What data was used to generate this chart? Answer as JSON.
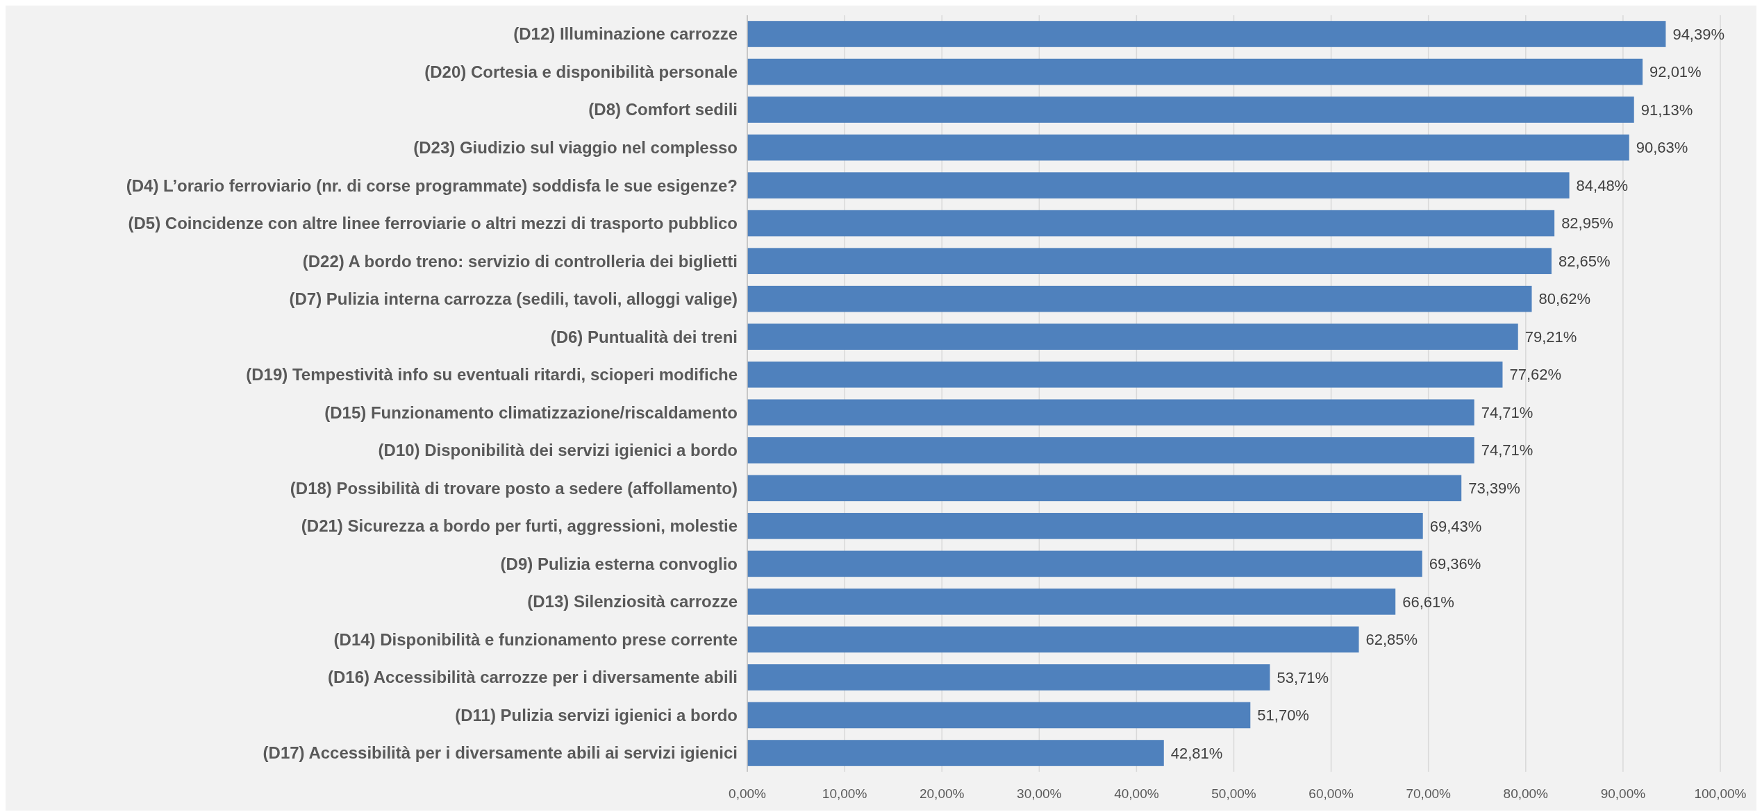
{
  "chart_data": {
    "type": "bar",
    "orientation": "horizontal",
    "categories": [
      "(D12) Illuminazione carrozze",
      "(D20) Cortesia e disponibilità personale",
      "(D8) Comfort sedili",
      "(D23) Giudizio sul viaggio nel complesso",
      "(D4) L’orario ferroviario (nr. di corse programmate) soddisfa le sue esigenze?",
      "(D5) Coincidenze con altre linee ferroviarie o altri mezzi di trasporto pubblico",
      "(D22) A bordo treno: servizio di controlleria dei biglietti",
      "(D7) Pulizia interna carrozza (sedili, tavoli, alloggi valige)",
      "(D6) Puntualità dei treni",
      "(D19) Tempestività info su eventuali ritardi, scioperi modifiche",
      "(D15) Funzionamento climatizzazione/riscaldamento",
      "(D10) Disponibilità dei servizi igienici a bordo",
      "(D18) Possibilità di trovare posto a sedere (affollamento)",
      "(D21) Sicurezza a bordo per furti, aggressioni, molestie",
      "(D9) Pulizia esterna convoglio",
      "(D13) Silenziosità carrozze",
      "(D14) Disponibilità e funzionamento prese corrente",
      "(D16) Accessibilità carrozze per i diversamente abili",
      "(D11) Pulizia servizi igienici a bordo",
      "(D17) Accessibilità per i diversamente abili ai servizi igienici"
    ],
    "values": [
      94.39,
      92.01,
      91.13,
      90.63,
      84.48,
      82.95,
      82.65,
      80.62,
      79.21,
      77.62,
      74.71,
      74.71,
      73.39,
      69.43,
      69.36,
      66.61,
      62.85,
      53.71,
      51.7,
      42.81
    ],
    "value_labels": [
      "94,39%",
      "92,01%",
      "91,13%",
      "90,63%",
      "84,48%",
      "82,95%",
      "82,65%",
      "80,62%",
      "79,21%",
      "77,62%",
      "74,71%",
      "74,71%",
      "73,39%",
      "69,43%",
      "69,36%",
      "66,61%",
      "62,85%",
      "53,71%",
      "51,70%",
      "42,81%"
    ],
    "color": "#4f81bd",
    "xlim": [
      0,
      100
    ],
    "xticks": [
      {
        "value": 0,
        "label": "0,00%"
      },
      {
        "value": 10,
        "label": "10,00%"
      },
      {
        "value": 20,
        "label": "20,00%"
      },
      {
        "value": 30,
        "label": "30,00%"
      },
      {
        "value": 40,
        "label": "40,00%"
      },
      {
        "value": 50,
        "label": "50,00%"
      },
      {
        "value": 60,
        "label": "60,00%"
      },
      {
        "value": 70,
        "label": "70,00%"
      },
      {
        "value": 80,
        "label": "80,00%"
      },
      {
        "value": 90,
        "label": "90,00%"
      },
      {
        "value": 100,
        "label": "100,00%"
      }
    ],
    "grid": "x"
  }
}
